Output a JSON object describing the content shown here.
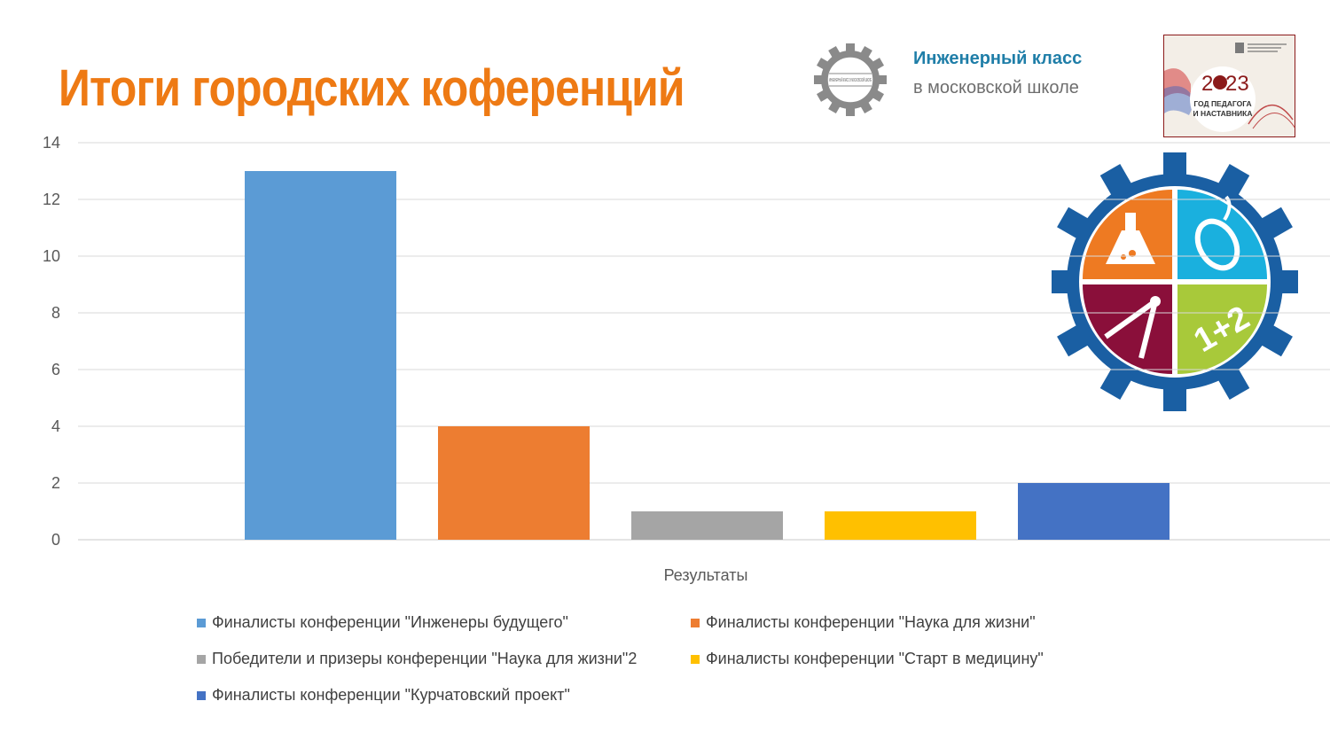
{
  "slide": {
    "title": "Итоги городских коференций",
    "brand": {
      "logo_icon": "gear-logo-icon",
      "logo_ring_text": "ИНЖЕНЕРНЫЙ КЛАСС В МОСКОВСКОЙ ШКОЛЕ",
      "line1": "Инженерный класс",
      "line2": "в московской школе",
      "colors": {
        "line1": "#1f7ea8",
        "line2": "#6e6e6e"
      }
    },
    "year_badge": {
      "icon": "year-of-teacher-badge-icon",
      "year_part1": "2",
      "year_part2": "23",
      "line1": "ГОД ПЕДАГОГА",
      "line2": "И НАСТАВНИКА"
    },
    "emblem": {
      "icon": "engineering-gear-emblem-icon",
      "text": "1+2",
      "colors": {
        "gear": "#1a5fa3",
        "chemistry": "#ee7a22",
        "computer": "#1ab0de",
        "math": "#8a0f3a",
        "numbers": "#a8c93a"
      }
    }
  },
  "chart_data": {
    "type": "bar",
    "xlabel": "Результаты",
    "ylabel": "",
    "ylim": [
      0,
      14
    ],
    "yticks": [
      0,
      2,
      4,
      6,
      8,
      10,
      12,
      14
    ],
    "categories": [
      "Результаты"
    ],
    "grid": true,
    "legend_position": "bottom",
    "series": [
      {
        "name": "Финалисты конференции \"Инженеры будущего\"",
        "values": [
          13
        ],
        "color": "#5b9bd5"
      },
      {
        "name": "Финалисты конференции \"Наука для жизни\"",
        "values": [
          4
        ],
        "color": "#ed7d31"
      },
      {
        "name": "Победители и призеры конференции \"Наука для жизни\"2",
        "values": [
          1
        ],
        "color": "#a5a5a5"
      },
      {
        "name": "Финалисты конференции \"Старт в медицину\"",
        "values": [
          1
        ],
        "color": "#ffc000"
      },
      {
        "name": "Финалисты конференции \"Курчатовский проект\"",
        "values": [
          2
        ],
        "color": "#4472c4"
      }
    ]
  }
}
